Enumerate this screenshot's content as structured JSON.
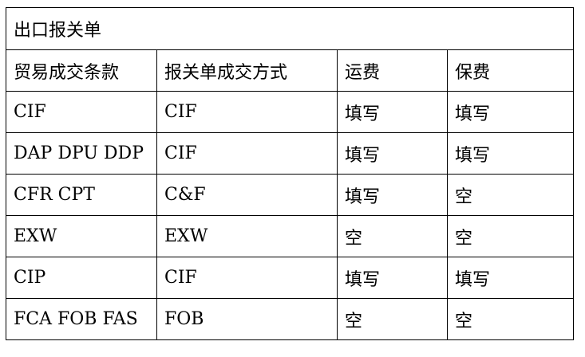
{
  "title": "出口报关单",
  "headers": [
    "贸易成交条款",
    "报关单成交方式",
    "运费",
    "保费"
  ],
  "rows": [
    [
      "CIF",
      "CIF",
      "填写",
      "填写"
    ],
    [
      "DAP DPU DDP",
      "CIF",
      "填写",
      "填写"
    ],
    [
      "CFR CPT",
      "C&F",
      "填写",
      "空"
    ],
    [
      "EXW",
      "EXW",
      "空",
      "空"
    ],
    [
      "CIP",
      "CIF",
      "填写",
      "填写"
    ],
    [
      "FCA FOB FAS",
      "FOB",
      "空",
      "空"
    ]
  ]
}
